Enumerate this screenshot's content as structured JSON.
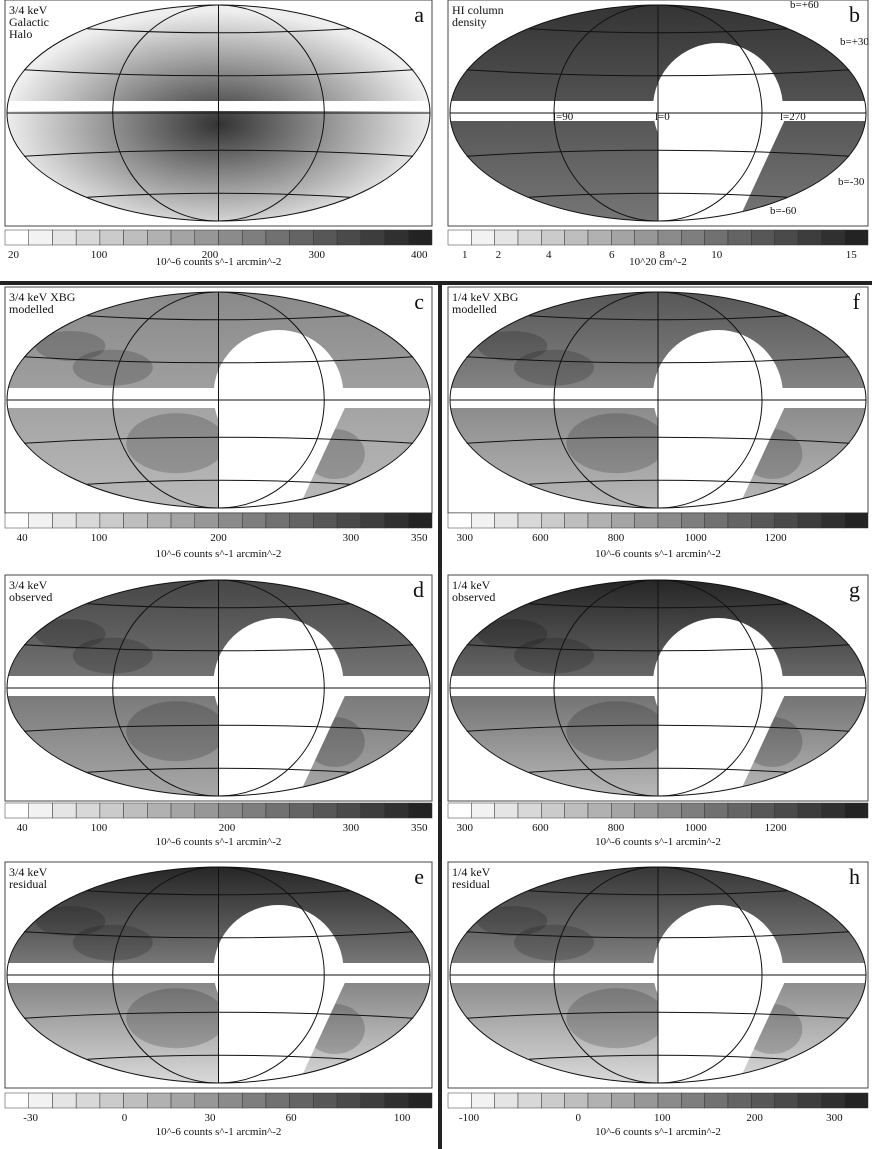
{
  "panels": [
    {
      "letter": "a",
      "label": [
        "3/4 keV",
        "Galactic",
        "Halo"
      ],
      "ticks": [
        "20",
        "100",
        "200",
        "300",
        "400"
      ],
      "unit": "10^-6 counts s^-1 arcmin^-2"
    },
    {
      "letter": "b",
      "label": [
        "HI column",
        "density"
      ],
      "annotations": [
        "b=+60",
        "b=+30",
        "l=90",
        "l=0",
        "l=270",
        "b=-30",
        "b=-60"
      ],
      "ticks": [
        "1",
        "2",
        "4",
        "6",
        "8",
        "10",
        "15"
      ],
      "unit": "10^20 cm^-2"
    },
    {
      "letter": "c",
      "label": [
        "3/4 keV XBG",
        "modelled"
      ],
      "ticks": [
        "40",
        "100",
        "200",
        "300",
        "350"
      ],
      "unit": "10^-6 counts s^-1 arcmin^-2"
    },
    {
      "letter": "f",
      "label": [
        "1/4 keV XBG",
        "modelled"
      ],
      "ticks": [
        "300",
        "600",
        "800",
        "1000",
        "1200"
      ],
      "unit": "10^-6 counts s^-1 arcmin^-2"
    },
    {
      "letter": "d",
      "label": [
        "3/4 keV",
        "observed"
      ],
      "ticks": [
        "40",
        "100",
        "200",
        "300",
        "350"
      ],
      "unit": "10^-6 counts s^-1 arcmin^-2"
    },
    {
      "letter": "g",
      "label": [
        "1/4 keV",
        "observed"
      ],
      "ticks": [
        "300",
        "600",
        "800",
        "1000",
        "1200"
      ],
      "unit": "10^-6 counts s^-1 arcmin^-2"
    },
    {
      "letter": "e",
      "label": [
        "3/4 keV",
        "residual"
      ],
      "ticks": [
        "-30",
        "0",
        "30",
        "60",
        "100"
      ],
      "unit": "10^-6 counts s^-1 arcmin^-2"
    },
    {
      "letter": "h",
      "label": [
        "1/4 keV",
        "residual"
      ],
      "ticks": [
        "-100",
        "0",
        "100",
        "200",
        "300"
      ],
      "unit": "10^-6 counts s^-1 arcmin^-2"
    }
  ]
}
